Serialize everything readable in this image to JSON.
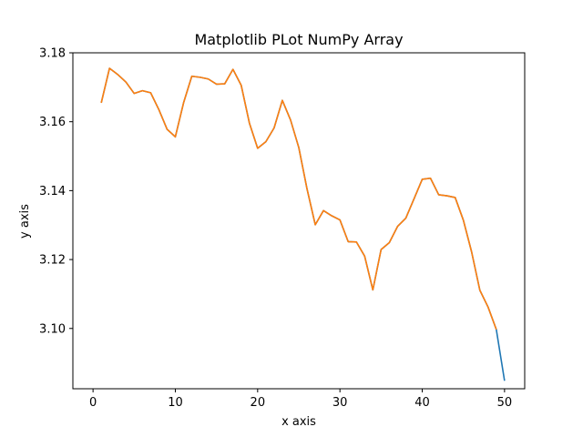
{
  "chart_data": {
    "type": "line",
    "title": "Matplotlib PLot NumPy Array",
    "xlabel": "x axis",
    "ylabel": "y axis",
    "xlim": [
      -2.45,
      52.45
    ],
    "ylim": [
      3.0825,
      3.18
    ],
    "xticks": [
      0,
      10,
      20,
      30,
      40,
      50
    ],
    "yticks": [
      3.1,
      3.12,
      3.14,
      3.16,
      3.18
    ],
    "ytick_labels": [
      "3.10",
      "3.12",
      "3.14",
      "3.16",
      "3.18"
    ],
    "grid": false,
    "legend": "none",
    "series": [
      {
        "color": "#1f77b4",
        "x": [
          1,
          2,
          3,
          4,
          5,
          6,
          7,
          8,
          9,
          10,
          11,
          12,
          13,
          14,
          15,
          16,
          17,
          18,
          19,
          20,
          21,
          22,
          23,
          24,
          25,
          26,
          27,
          28,
          29,
          30,
          31,
          32,
          33,
          34,
          35,
          36,
          37,
          38,
          39,
          40,
          41,
          42,
          43,
          44,
          45,
          46,
          47,
          48,
          49,
          50
        ],
        "y": [
          3.1655,
          3.1755,
          3.1737,
          3.1715,
          3.1682,
          3.169,
          3.1684,
          3.1635,
          3.1578,
          3.1556,
          3.1655,
          3.1732,
          3.1729,
          3.1724,
          3.1709,
          3.171,
          3.1752,
          3.1706,
          3.1596,
          3.1523,
          3.1542,
          3.1582,
          3.1662,
          3.1605,
          3.1525,
          3.1405,
          3.1301,
          3.1342,
          3.1327,
          3.1315,
          3.1252,
          3.1251,
          3.121,
          3.1112,
          3.1229,
          3.1249,
          3.1296,
          3.132,
          3.1376,
          3.1433,
          3.1436,
          3.1388,
          3.1385,
          3.138,
          3.1314,
          3.1222,
          3.1111,
          3.1062,
          3.0997,
          3.0848
        ]
      },
      {
        "color": "#ff7f0e",
        "x": [
          1,
          2,
          3,
          4,
          5,
          6,
          7,
          8,
          9,
          10,
          11,
          12,
          13,
          14,
          15,
          16,
          17,
          18,
          19,
          20,
          21,
          22,
          23,
          24,
          25,
          26,
          27,
          28,
          29,
          30,
          31,
          32,
          33,
          34,
          35,
          36,
          37,
          38,
          39,
          40,
          41,
          42,
          43,
          44,
          45,
          46,
          47,
          48,
          49
        ],
        "y": [
          3.1655,
          3.1755,
          3.1737,
          3.1715,
          3.1682,
          3.169,
          3.1684,
          3.1635,
          3.1578,
          3.1556,
          3.1655,
          3.1732,
          3.1729,
          3.1724,
          3.1709,
          3.171,
          3.1752,
          3.1706,
          3.1596,
          3.1523,
          3.1542,
          3.1582,
          3.1662,
          3.1605,
          3.1525,
          3.1405,
          3.1301,
          3.1342,
          3.1327,
          3.1315,
          3.1252,
          3.1251,
          3.121,
          3.1112,
          3.1229,
          3.1249,
          3.1296,
          3.132,
          3.1376,
          3.1433,
          3.1436,
          3.1388,
          3.1385,
          3.138,
          3.1314,
          3.1222,
          3.1111,
          3.1062,
          3.0997
        ]
      }
    ]
  }
}
